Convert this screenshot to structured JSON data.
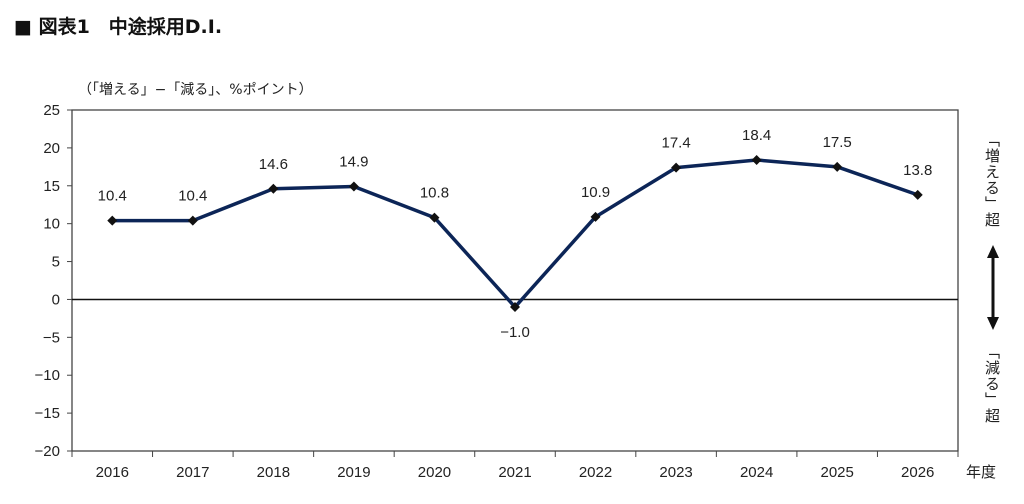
{
  "chart_data": {
    "type": "line",
    "title": "■ 図表1　中途採用D.I.",
    "ylabel": "（「増える」−「減る」、%ポイント）",
    "xlabel": "年度",
    "categories": [
      "2016",
      "2017",
      "2018",
      "2019",
      "2020",
      "2021",
      "2022",
      "2023",
      "2024",
      "2025",
      "2026"
    ],
    "series": [
      {
        "name": "中途採用D.I.",
        "values": [
          10.4,
          10.4,
          14.6,
          14.9,
          10.8,
          -1.0,
          10.9,
          17.4,
          18.4,
          17.5,
          13.8
        ],
        "color": "#0c2557"
      }
    ],
    "data_labels": [
      "10.4",
      "10.4",
      "14.6",
      "14.9",
      "10.8",
      "−1.0",
      "10.9",
      "17.4",
      "18.4",
      "17.5",
      "13.8"
    ],
    "ylim": [
      -20,
      25
    ],
    "yticks": [
      25,
      20,
      15,
      10,
      5,
      0,
      -5,
      -10,
      -15,
      -20
    ],
    "ytick_labels": [
      "25",
      "20",
      "15",
      "10",
      "5",
      "0",
      "−5",
      "−10",
      "−15",
      "−20"
    ],
    "grid": false,
    "annotations": {
      "upper": "「増える」超",
      "lower": "「減る」超"
    }
  }
}
